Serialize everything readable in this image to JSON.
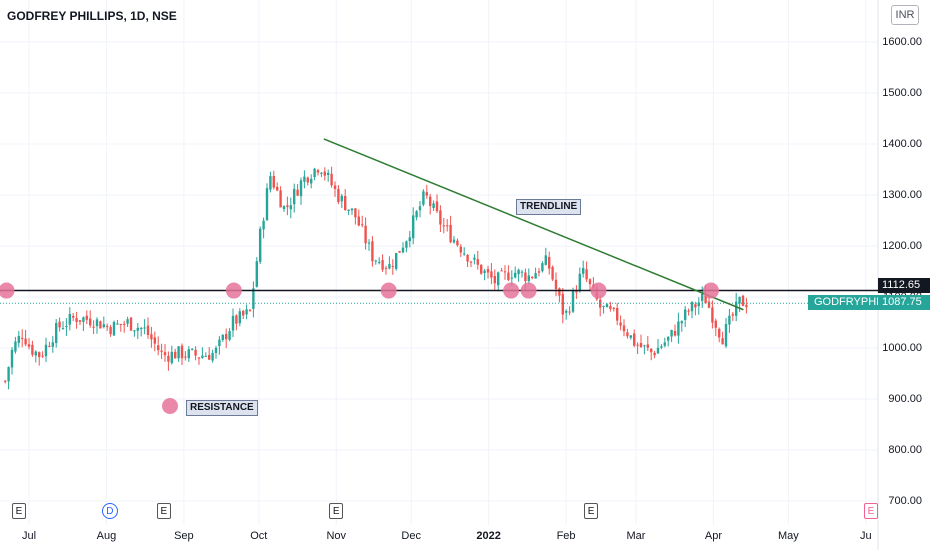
{
  "header": {
    "title": "GODFREY PHILLIPS, 1D, NSE",
    "currency": "INR"
  },
  "colors": {
    "up": "#26a69a",
    "down": "#ef5350",
    "trendline": "#2e7d32",
    "resistance": "#131722",
    "marker": "#e57399"
  },
  "chart_data": {
    "type": "candlestick",
    "symbol": "GODFRYPHLP",
    "last_price": "1087.75",
    "ylim": [
      700,
      1650
    ],
    "y_ticks": [
      "1600.00",
      "1500.00",
      "1400.00",
      "1300.00",
      "1200.00",
      "1100.00",
      "1000.00",
      "900.00",
      "800.00",
      "700.00"
    ],
    "x_ticks": [
      "Jul",
      "Aug",
      "Sep",
      "Oct",
      "Nov",
      "Dec",
      "2022",
      "Feb",
      "Mar",
      "Apr",
      "May",
      "Ju"
    ],
    "resistance_level": "1112.65",
    "close_path": [
      [
        "2021-06-21",
        935
      ],
      [
        "2021-06-24",
        1000
      ],
      [
        "2021-06-28",
        1030
      ],
      [
        "2021-07-01",
        1000
      ],
      [
        "2021-07-05",
        985
      ],
      [
        "2021-07-12",
        1040
      ],
      [
        "2021-07-19",
        1060
      ],
      [
        "2021-07-26",
        1055
      ],
      [
        "2021-08-02",
        1040
      ],
      [
        "2021-08-09",
        1050
      ],
      [
        "2021-08-16",
        1035
      ],
      [
        "2021-08-23",
        985
      ],
      [
        "2021-08-30",
        990
      ],
      [
        "2021-09-06",
        985
      ],
      [
        "2021-09-13",
        990
      ],
      [
        "2021-09-20",
        1050
      ],
      [
        "2021-09-27",
        1070
      ],
      [
        "2021-10-01",
        1220
      ],
      [
        "2021-10-05",
        1340
      ],
      [
        "2021-10-11",
        1270
      ],
      [
        "2021-10-18",
        1330
      ],
      [
        "2021-10-25",
        1360
      ],
      [
        "2021-11-01",
        1300
      ],
      [
        "2021-11-08",
        1260
      ],
      [
        "2021-11-15",
        1180
      ],
      [
        "2021-11-22",
        1160
      ],
      [
        "2021-11-29",
        1220
      ],
      [
        "2021-12-06",
        1300
      ],
      [
        "2021-12-13",
        1240
      ],
      [
        "2021-12-20",
        1200
      ],
      [
        "2021-12-27",
        1160
      ],
      [
        "2022-01-03",
        1130
      ],
      [
        "2022-01-10",
        1150
      ],
      [
        "2022-01-17",
        1140
      ],
      [
        "2022-01-24",
        1170
      ],
      [
        "2022-01-31",
        1060
      ],
      [
        "2022-02-07",
        1150
      ],
      [
        "2022-02-14",
        1080
      ],
      [
        "2022-02-21",
        1060
      ],
      [
        "2022-02-28",
        1010
      ],
      [
        "2022-03-07",
        990
      ],
      [
        "2022-03-14",
        1020
      ],
      [
        "2022-03-21",
        1070
      ],
      [
        "2022-03-28",
        1100
      ],
      [
        "2022-04-04",
        1020
      ],
      [
        "2022-04-11",
        1090
      ]
    ],
    "trendline": [
      [
        "2021-10-27",
        1410
      ],
      [
        "2022-04-13",
        1075
      ]
    ],
    "resistance_touches": [
      "2021-06-22",
      "2021-09-21",
      "2021-11-22",
      "2022-01-10",
      "2022-01-17",
      "2022-02-14",
      "2022-03-31"
    ],
    "events": [
      {
        "date": "2021-06-27",
        "label": "E"
      },
      {
        "date": "2021-08-02",
        "label": "D"
      },
      {
        "date": "2021-08-24",
        "label": "E"
      },
      {
        "date": "2021-11-01",
        "label": "E"
      },
      {
        "date": "2022-02-11",
        "label": "E"
      },
      {
        "date": "2022-06-30",
        "label": "E"
      }
    ],
    "annotations": {
      "trendline": "TRENDLINE",
      "resistance": "RESISTANCE"
    }
  }
}
